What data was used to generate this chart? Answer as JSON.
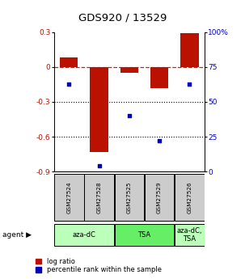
{
  "title": "GDS920 / 13529",
  "samples": [
    "GSM27524",
    "GSM27528",
    "GSM27525",
    "GSM27529",
    "GSM27526"
  ],
  "log_ratios": [
    0.08,
    -0.73,
    -0.05,
    -0.18,
    0.29
  ],
  "percentile_ranks": [
    63,
    4,
    40,
    22,
    63
  ],
  "agents": [
    {
      "label": "aza-dC",
      "span": [
        0,
        2
      ],
      "color": "#bbffbb"
    },
    {
      "label": "TSA",
      "span": [
        2,
        4
      ],
      "color": "#66ee66"
    },
    {
      "label": "aza-dC,\nTSA",
      "span": [
        4,
        5
      ],
      "color": "#bbffbb"
    }
  ],
  "ylim_left": [
    -0.9,
    0.3
  ],
  "ylim_right": [
    0,
    100
  ],
  "yticks_left": [
    0.3,
    0.0,
    -0.3,
    -0.6,
    -0.9
  ],
  "ytick_labels_left": [
    "0.3",
    "0",
    "-0.3",
    "-0.6",
    "-0.9"
  ],
  "yticks_right": [
    100,
    75,
    50,
    25,
    0
  ],
  "ytick_labels_right": [
    "100%",
    "75",
    "50",
    "25",
    "0"
  ],
  "bar_color": "#bb1100",
  "dot_color": "#0000bb",
  "hline_color": "#cc2200",
  "dotline_color": "#000000",
  "sample_box_color": "#cccccc",
  "legend_red_label": "log ratio",
  "legend_blue_label": "percentile rank within the sample"
}
